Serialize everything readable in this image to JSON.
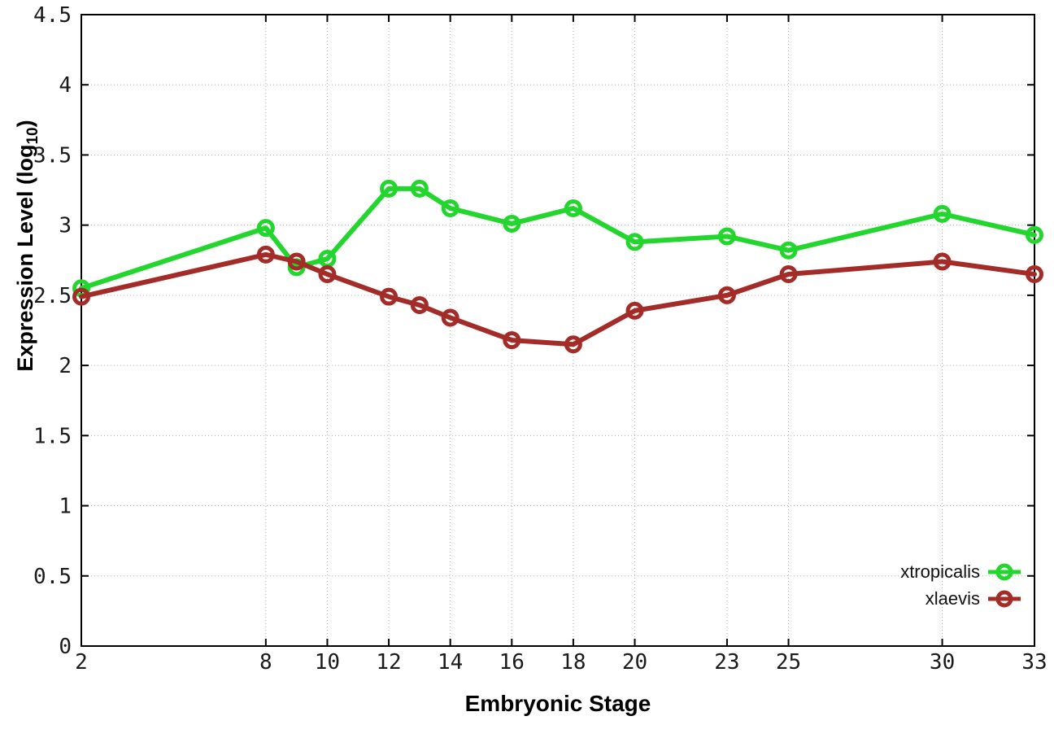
{
  "chart_data": {
    "type": "line",
    "x": [
      2,
      8,
      9,
      10,
      12,
      13,
      14,
      16,
      18,
      20,
      23,
      25,
      30,
      33
    ],
    "series": [
      {
        "name": "xtropicalis",
        "color": "#22d62e",
        "values": [
          2.55,
          2.98,
          2.7,
          2.76,
          3.26,
          3.26,
          3.12,
          3.01,
          3.12,
          2.88,
          2.92,
          2.82,
          3.08,
          2.93
        ]
      },
      {
        "name": "xlaevis",
        "color": "#a32c28",
        "values": [
          2.49,
          2.79,
          2.74,
          2.65,
          2.49,
          2.43,
          2.34,
          2.18,
          2.15,
          2.39,
          2.5,
          2.65,
          2.74,
          2.65
        ]
      }
    ],
    "title": "",
    "xlabel": "Embryonic Stage",
    "ylabel": "Expression Level (log10)",
    "xlim": [
      2,
      33
    ],
    "ylim": [
      0,
      4.5
    ],
    "xticks": {
      "values": [
        2,
        8,
        10,
        12,
        14,
        16,
        18,
        20,
        23,
        25,
        30,
        33
      ],
      "labels": [
        "2",
        "8",
        "10",
        "12",
        "14",
        "16",
        "18",
        "20",
        "23",
        "25",
        "30",
        "33"
      ]
    },
    "yticks": {
      "values": [
        0,
        0.5,
        1,
        1.5,
        2,
        2.5,
        3,
        3.5,
        4,
        4.5
      ],
      "labels": [
        "0",
        "0.5",
        "1",
        "1.5",
        "2",
        "2.5",
        "3",
        "3.5",
        "4",
        "4.5"
      ]
    },
    "grid": true,
    "legend_position": "bottom-right",
    "marker": "open-circle"
  },
  "axes": {
    "x": {
      "label": "Embryonic Stage"
    },
    "y": {
      "label_main": "Expression Level (log",
      "label_sub": "10",
      "label_close": ")"
    }
  },
  "legend": {
    "items": [
      {
        "label": "xtropicalis"
      },
      {
        "label": "xlaevis"
      }
    ]
  },
  "colors": {
    "background": "#ffffff",
    "border": "#000000",
    "grid": "#b3b3b3",
    "tick_text": "#1a1a1a",
    "xtropicalis": "#22d62e",
    "xlaevis": "#a32c28"
  }
}
